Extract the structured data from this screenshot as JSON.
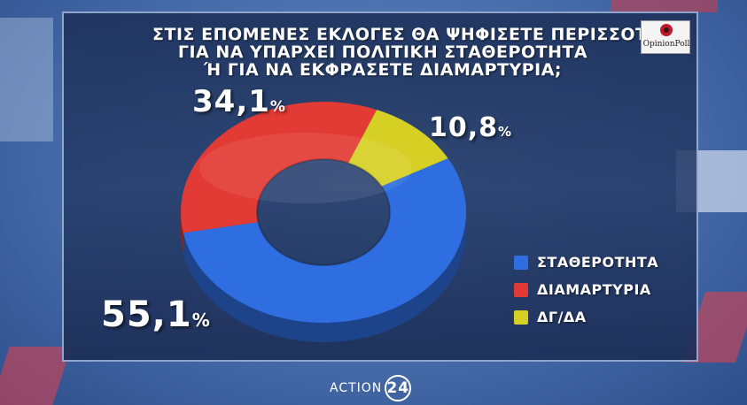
{
  "title_lines": [
    "ΣΤΙΣ ΕΠΟΜΕΝΕΣ ΕΚΛΟΓΕΣ ΘΑ ΨΗΦΙΣΕΤΕ ΠΕΡΙΣΣΟΤΕΡΟ",
    "ΓΙΑ ΝΑ ΥΠΑΡΧΕΙ ΠΟΛΙΤΙΚΗ ΣΤΑΘΕΡΟΤΗΤΑ",
    "Ή ΓΙΑ ΝΑ ΕΚΦΡΑΣΕΤΕ ΔΙΑΜΑΡΤΥΡΙΑ;"
  ],
  "logo_text": "OpinionPoll",
  "brand": {
    "name": "ACTION",
    "number": "24"
  },
  "colors": {
    "blue": "#2f6ee0",
    "red": "#e23a34",
    "yellow": "#d7d024"
  },
  "chart_data": {
    "type": "pie",
    "style": "donut",
    "title": "ΣΤΙΣ ΕΠΟΜΕΝΕΣ ΕΚΛΟΓΕΣ ΘΑ ΨΗΦΙΣΕΤΕ ΠΕΡΙΣΣΟΤΕΡΟ ΓΙΑ ΝΑ ΥΠΑΡΧΕΙ ΠΟΛΙΤΙΚΗ ΣΤΑΘΕΡΟΤΗΤΑ Ή ΓΙΑ ΝΑ ΕΚΦΡΑΣΕΤΕ ΔΙΑΜΑΡΤΥΡΙΑ;",
    "legend_position": "bottom-right",
    "slices": [
      {
        "label": "ΣΤΑΘΕΡΟΤΗΤΑ",
        "value": 55.1,
        "display": "55,1",
        "color": "#2f6ee0"
      },
      {
        "label": "ΔΙΑΜΑΡΤΥΡΙΑ",
        "value": 34.1,
        "display": "34,1",
        "color": "#e23a34"
      },
      {
        "label": "ΔΓ/ΔΑ",
        "value": 10.8,
        "display": "10,8",
        "color": "#d7d024"
      }
    ],
    "unit": "%"
  }
}
